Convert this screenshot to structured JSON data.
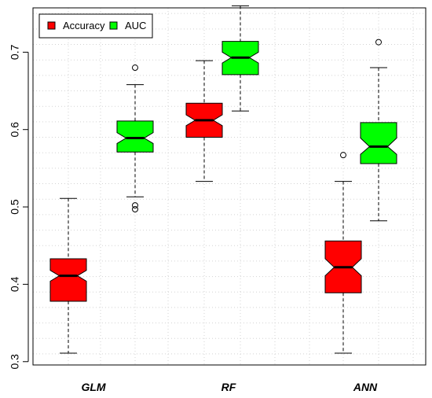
{
  "chart_data": {
    "type": "boxplot",
    "notched": true,
    "categories": [
      "GLM",
      "RF",
      "ANN"
    ],
    "ylim": [
      0.3,
      0.75
    ],
    "yticks": [
      0.3,
      0.4,
      0.5,
      0.6,
      0.7
    ],
    "ytick_labels": [
      "0.3",
      "0.4",
      "0.5",
      "0.6",
      "0.7"
    ],
    "grid": true,
    "legend_position": "top-left",
    "series": [
      {
        "name": "Accuracy",
        "color": "#ff0000",
        "boxes": [
          {
            "whisker_low": 0.311,
            "q1": 0.378,
            "median": 0.411,
            "q3": 0.433,
            "whisker_high": 0.511,
            "notch_low": 0.404,
            "notch_high": 0.418,
            "outliers": []
          },
          {
            "whisker_low": 0.533,
            "q1": 0.59,
            "median": 0.612,
            "q3": 0.634,
            "whisker_high": 0.689,
            "notch_low": 0.605,
            "notch_high": 0.619,
            "outliers": []
          },
          {
            "whisker_low": 0.311,
            "q1": 0.389,
            "median": 0.422,
            "q3": 0.456,
            "whisker_high": 0.533,
            "notch_low": 0.411,
            "notch_high": 0.433,
            "outliers": [
              0.567
            ]
          }
        ]
      },
      {
        "name": "AUC",
        "color": "#00ff00",
        "boxes": [
          {
            "whisker_low": 0.513,
            "q1": 0.571,
            "median": 0.589,
            "q3": 0.611,
            "whisker_high": 0.658,
            "notch_low": 0.582,
            "notch_high": 0.596,
            "outliers": [
              0.68,
              0.502,
              0.497
            ]
          },
          {
            "whisker_low": 0.624,
            "q1": 0.671,
            "median": 0.693,
            "q3": 0.714,
            "whisker_high": 0.76,
            "notch_low": 0.686,
            "notch_high": 0.7,
            "outliers": []
          },
          {
            "whisker_low": 0.482,
            "q1": 0.556,
            "median": 0.578,
            "q3": 0.609,
            "whisker_high": 0.68,
            "notch_low": 0.568,
            "notch_high": 0.589,
            "outliers": [
              0.713
            ]
          }
        ]
      }
    ]
  }
}
